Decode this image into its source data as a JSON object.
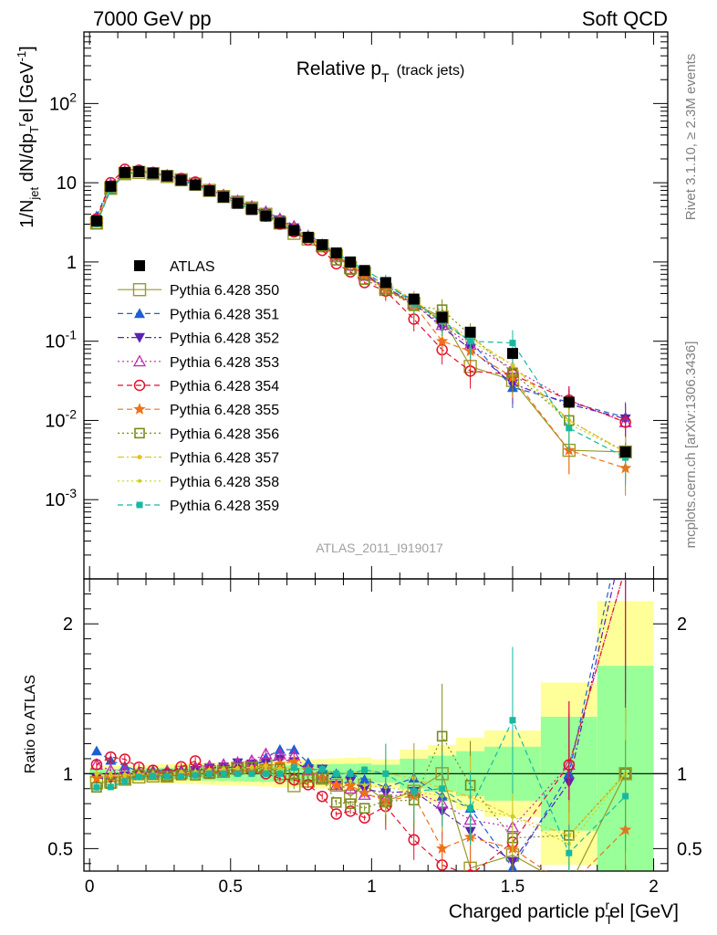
{
  "header": {
    "left": "7000 GeV pp",
    "right": "Soft QCD"
  },
  "side": {
    "rivet": "Rivet 3.1.10, ≥ 2.3M events",
    "mcplots": "mcplots.cern.ch [arXiv:1306.3436]"
  },
  "chart_data": {
    "type": "scatter",
    "title": "Relative p_T (track jets)",
    "title_main": "Relative p",
    "title_sub": "T",
    "title_tail": "(track jets)",
    "analysis_label": "ATLAS_2011_I919017",
    "ylabel_top": "1/N_jet dN/dp_T^rel [GeV^-1]",
    "ylabel_bottom": "Ratio to ATLAS",
    "xlabel": "Charged particle p_T^rel [GeV]",
    "xlim": [
      -0.02,
      2.05
    ],
    "ylim_top": [
      0.0001,
      800
    ],
    "yscale_top": "log",
    "ylim_ratio": [
      0.35,
      2.3
    ],
    "x_ticks": [
      "0",
      "0.5",
      "1",
      "1.5",
      "2"
    ],
    "y_ticks_top": [
      "10^-3",
      "10^-2",
      "10^-1",
      "1",
      "10",
      "10^2"
    ],
    "y_ticks_ratio": [
      "0.5",
      "1",
      "2"
    ],
    "legend_position": "middle-left",
    "x": [
      0.025,
      0.075,
      0.125,
      0.175,
      0.225,
      0.275,
      0.325,
      0.375,
      0.425,
      0.475,
      0.525,
      0.575,
      0.625,
      0.675,
      0.725,
      0.775,
      0.825,
      0.875,
      0.925,
      0.975,
      1.05,
      1.15,
      1.25,
      1.35,
      1.5,
      1.7,
      1.9
    ],
    "bin_edges": [
      0,
      0.05,
      0.1,
      0.15,
      0.2,
      0.25,
      0.3,
      0.35,
      0.4,
      0.45,
      0.5,
      0.55,
      0.6,
      0.65,
      0.7,
      0.75,
      0.8,
      0.85,
      0.9,
      0.95,
      1.0,
      1.1,
      1.2,
      1.3,
      1.4,
      1.6,
      1.8,
      2.0
    ],
    "data": {
      "name": "ATLAS",
      "values": [
        3.3,
        9.0,
        13.5,
        13.8,
        13.2,
        12.2,
        10.8,
        9.4,
        7.9,
        6.6,
        5.5,
        4.6,
        3.8,
        3.1,
        2.5,
        2.05,
        1.65,
        1.3,
        1.0,
        0.78,
        0.55,
        0.34,
        0.2,
        0.13,
        0.07,
        0.017,
        0.004
      ]
    },
    "series": [
      {
        "name": "Pythia 6.428 350",
        "color": "#9a9a2a",
        "marker": "open-square",
        "line": "solid",
        "values": [
          3.1,
          8.5,
          13.0,
          13.5,
          13.0,
          12.0,
          10.9,
          9.6,
          8.0,
          6.7,
          5.7,
          4.8,
          4.0,
          3.1,
          2.3,
          1.95,
          1.6,
          1.2,
          0.85,
          0.72,
          0.45,
          0.3,
          0.2,
          0.048,
          0.032,
          0.0042,
          0.004
        ]
      },
      {
        "name": "Pythia 6.428 351",
        "color": "#1f5fd0",
        "marker": "up-triangle",
        "line": "dashed",
        "values": [
          3.8,
          9.8,
          14.2,
          14.0,
          13.5,
          12.5,
          11.0,
          9.5,
          8.1,
          6.8,
          5.8,
          4.8,
          4.2,
          3.6,
          2.9,
          2.2,
          1.7,
          1.3,
          1.0,
          0.75,
          0.5,
          0.33,
          0.17,
          0.1,
          0.026,
          0.017,
          0.011
        ]
      },
      {
        "name": "Pythia 6.428 352",
        "color": "#5a22b0",
        "marker": "down-triangle",
        "line": "dashdot",
        "values": [
          3.2,
          8.7,
          13.3,
          13.7,
          13.1,
          12.2,
          10.8,
          9.6,
          8.2,
          6.9,
          5.9,
          4.9,
          4.1,
          3.4,
          2.7,
          2.1,
          1.7,
          1.2,
          0.95,
          0.7,
          0.48,
          0.3,
          0.15,
          0.08,
          0.029,
          0.016,
          0.0105
        ]
      },
      {
        "name": "Pythia 6.428 353",
        "color": "#c02ab5",
        "marker": "open-up-triangle",
        "line": "dotted",
        "values": [
          3.5,
          9.2,
          13.8,
          13.9,
          13.3,
          12.4,
          11.0,
          9.8,
          8.3,
          7.0,
          5.9,
          5.0,
          4.3,
          3.5,
          2.8,
          2.1,
          1.6,
          1.2,
          0.9,
          0.67,
          0.46,
          0.3,
          0.16,
          0.09,
          0.045,
          0.018,
          0.0095
        ]
      },
      {
        "name": "Pythia 6.428 354",
        "color": "#e0102a",
        "marker": "open-circle",
        "line": "dashed",
        "values": [
          3.5,
          10.0,
          14.8,
          14.4,
          13.5,
          12.2,
          11.3,
          10.2,
          8.0,
          6.7,
          5.6,
          4.7,
          3.8,
          3.0,
          2.4,
          1.9,
          1.4,
          0.95,
          0.75,
          0.55,
          0.43,
          0.19,
          0.078,
          0.042,
          0.038,
          0.018,
          0.0095
        ]
      },
      {
        "name": "Pythia 6.428 355",
        "color": "#f07018",
        "marker": "star",
        "line": "dashed",
        "values": [
          3.2,
          8.8,
          13.2,
          13.6,
          13.1,
          12.0,
          10.7,
          9.4,
          7.9,
          6.7,
          5.6,
          4.7,
          4.0,
          3.3,
          2.7,
          2.1,
          1.6,
          1.2,
          0.92,
          0.68,
          0.45,
          0.29,
          0.1,
          0.075,
          0.035,
          0.0042,
          0.0025
        ]
      },
      {
        "name": "Pythia 6.428 356",
        "color": "#7a8a1a",
        "marker": "open-square-small",
        "line": "dotted",
        "values": [
          3.0,
          8.4,
          13.0,
          13.7,
          13.1,
          12.0,
          10.7,
          9.3,
          7.9,
          6.7,
          5.7,
          4.8,
          3.9,
          3.2,
          2.5,
          2.0,
          1.6,
          1.05,
          0.8,
          0.6,
          0.45,
          0.28,
          0.25,
          0.12,
          0.04,
          0.01,
          0.004
        ]
      },
      {
        "name": "Pythia 6.428 357",
        "color": "#e8c020",
        "marker": "dot-dash",
        "line": "dashdot",
        "values": [
          3.3,
          8.9,
          13.4,
          13.8,
          13.2,
          12.1,
          10.9,
          9.5,
          8.1,
          6.8,
          5.7,
          4.8,
          4.0,
          3.2,
          2.6,
          2.1,
          1.7,
          1.3,
          1.0,
          0.8,
          0.55,
          0.33,
          0.18,
          0.11,
          0.05,
          0.01,
          0.004
        ]
      },
      {
        "name": "Pythia 6.428 358",
        "color": "#c8d020",
        "marker": "small-dot",
        "line": "dotted",
        "values": [
          3.3,
          8.9,
          13.3,
          13.7,
          13.2,
          12.1,
          10.8,
          9.5,
          8.0,
          6.8,
          5.7,
          4.8,
          3.9,
          3.2,
          2.6,
          2.1,
          1.7,
          1.3,
          0.95,
          0.72,
          0.5,
          0.3,
          0.17,
          0.1,
          0.05,
          0.009,
          0.004
        ]
      },
      {
        "name": "Pythia 6.428 359",
        "color": "#18b8a0",
        "marker": "filled-square-small",
        "line": "dashed",
        "values": [
          3.0,
          8.2,
          12.8,
          13.5,
          13.0,
          12.0,
          10.6,
          9.3,
          7.9,
          6.6,
          5.5,
          4.6,
          3.8,
          3.1,
          2.6,
          2.1,
          1.7,
          1.3,
          1.0,
          0.8,
          0.55,
          0.3,
          0.18,
          0.1,
          0.095,
          0.008,
          0.0034
        ]
      }
    ]
  }
}
